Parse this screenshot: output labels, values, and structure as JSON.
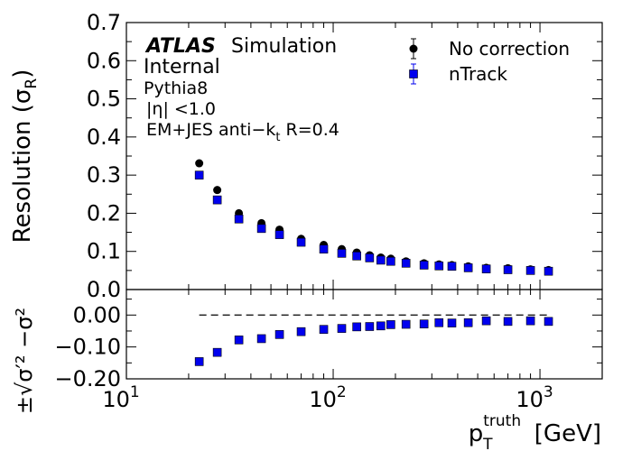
{
  "chart_data": [
    {
      "panel": "main",
      "type": "scatter",
      "x_scale": "log",
      "xlim": [
        10,
        2000
      ],
      "ylim": [
        0,
        0.7
      ],
      "ylabel": "Resolution (σR)",
      "yticks": [
        "0.0",
        "0.1",
        "0.2",
        "0.3",
        "0.4",
        "0.5",
        "0.6",
        "0.7"
      ],
      "annotations": {
        "atlas": "ATLAS",
        "simulation": "Simulation",
        "internal": "Internal",
        "generator": "Pythia8",
        "eta_cut": "|η| <1.0",
        "jet": "EM+JES anti−kt R=0.4"
      },
      "legend_position": "top-right",
      "x": [
        22.5,
        27.5,
        35,
        45,
        55,
        70,
        90,
        110,
        130,
        150,
        170,
        190,
        225,
        275,
        325,
        375,
        450,
        550,
        700,
        900,
        1100
      ],
      "series": [
        {
          "name": "No correction",
          "marker": "circle",
          "color": "#000000",
          "values": [
            0.331,
            0.261,
            0.2,
            0.174,
            0.157,
            0.133,
            0.117,
            0.106,
            0.097,
            0.09,
            0.084,
            0.081,
            0.074,
            0.069,
            0.066,
            0.064,
            0.061,
            0.057,
            0.056,
            0.053,
            0.051
          ]
        },
        {
          "name": "nTrack",
          "marker": "square",
          "color": "#0000ee",
          "values": [
            0.3,
            0.235,
            0.185,
            0.16,
            0.144,
            0.124,
            0.106,
            0.095,
            0.088,
            0.083,
            0.077,
            0.074,
            0.069,
            0.064,
            0.062,
            0.061,
            0.057,
            0.054,
            0.052,
            0.05,
            0.048
          ]
        }
      ]
    },
    {
      "panel": "ratio",
      "type": "scatter",
      "x_scale": "log",
      "xlim": [
        10,
        2000
      ],
      "ylim": [
        -0.2,
        0.08
      ],
      "ylabel": "±√σ′² −σ²",
      "yticks": [
        "0.00",
        "−0.10",
        "−0.20"
      ],
      "xticks": [
        {
          "base": "10",
          "exp": "1"
        },
        {
          "base": "10",
          "exp": "2"
        },
        {
          "base": "10",
          "exp": "3"
        }
      ],
      "xlabel": {
        "p": "p",
        "sup": "truth",
        "sub": "T",
        "unit": "[GeV]"
      },
      "reference_line": 0,
      "x": [
        22.5,
        27.5,
        35,
        45,
        55,
        70,
        90,
        110,
        130,
        150,
        170,
        190,
        225,
        275,
        325,
        375,
        450,
        550,
        700,
        900,
        1100
      ],
      "series": [
        {
          "name": "nTrack",
          "marker": "square",
          "color": "#0000ee",
          "values": [
            -0.146,
            -0.117,
            -0.078,
            -0.074,
            -0.061,
            -0.052,
            -0.045,
            -0.042,
            -0.037,
            -0.036,
            -0.034,
            -0.03,
            -0.029,
            -0.028,
            -0.024,
            -0.025,
            -0.024,
            -0.018,
            -0.02,
            -0.018,
            -0.02
          ]
        }
      ]
    }
  ]
}
